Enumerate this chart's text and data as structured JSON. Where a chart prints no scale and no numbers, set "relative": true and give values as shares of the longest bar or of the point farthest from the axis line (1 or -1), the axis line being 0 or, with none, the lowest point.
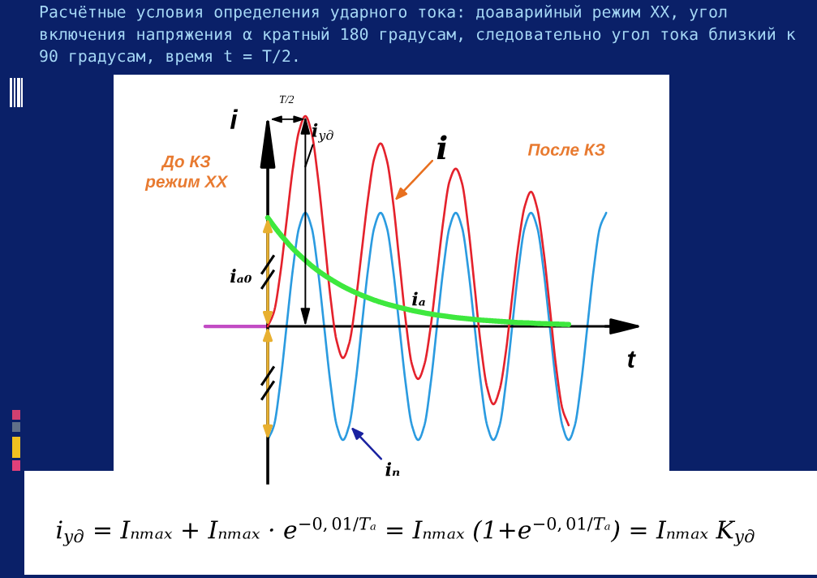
{
  "chart_data": {
    "type": "line",
    "title": "Расчётные условия определения ударного тока: доаварийный режим ХХ, угол включения напряжения α кратный 180 градусам, следовательно угол тока близкий к 90 градусам, время t = T/2.",
    "xlabel": "t",
    "ylabel": "i",
    "relative": true,
    "categories": [
      null,
      null,
      null,
      null,
      null,
      null,
      null,
      null,
      null,
      null,
      null,
      null,
      null,
      null,
      null,
      null,
      null,
      null,
      null,
      null,
      null,
      null,
      null,
      null,
      null,
      null,
      null,
      null,
      null,
      null,
      null,
      null,
      null,
      null,
      null,
      null,
      null,
      null,
      null,
      null,
      null,
      null,
      null,
      null,
      null,
      null,
      null,
      null,
      null,
      null,
      null,
      null,
      null,
      null,
      null,
      null,
      null,
      null,
      null,
      null,
      null,
      null,
      null,
      null,
      null
    ],
    "series": [
      {
        "name": "i",
        "color": "#e4222c",
        "values": [
          null,
          null,
          null,
          null,
          null,
          null,
          null,
          null,
          null,
          null,
          0,
          0.07,
          0.25,
          0.5,
          0.75,
          0.93,
          1.0,
          0.92,
          0.71,
          0.43,
          0.14,
          -0.07,
          -0.15,
          -0.08,
          0.11,
          0.36,
          0.61,
          0.8,
          0.87,
          0.79,
          0.59,
          0.31,
          0.03,
          -0.18,
          -0.25,
          -0.18,
          0.0,
          0.25,
          0.5,
          0.69,
          0.75,
          0.68,
          0.47,
          0.19,
          -0.09,
          -0.29,
          -0.37,
          -0.3,
          -0.12,
          0.14,
          0.39,
          0.57,
          0.64,
          0.56,
          0.36,
          0.09,
          -0.19,
          -0.39,
          -0.47,
          null,
          null,
          null,
          null,
          null,
          null
        ]
      },
      {
        "name": "iₙ",
        "color": "#2b9be0",
        "values": [
          null,
          null,
          null,
          null,
          null,
          null,
          null,
          null,
          null,
          null,
          -0.54,
          -0.47,
          -0.27,
          0,
          0.27,
          0.47,
          0.54,
          0.47,
          0.27,
          0,
          -0.27,
          -0.47,
          -0.54,
          -0.47,
          -0.27,
          0,
          0.27,
          0.47,
          0.54,
          0.47,
          0.27,
          0,
          -0.27,
          -0.47,
          -0.54,
          -0.47,
          -0.27,
          0,
          0.27,
          0.47,
          0.54,
          0.47,
          0.27,
          0,
          -0.27,
          -0.47,
          -0.54,
          -0.47,
          -0.27,
          0,
          0.27,
          0.47,
          0.54,
          0.47,
          0.27,
          0,
          -0.27,
          -0.47,
          -0.54,
          -0.47,
          -0.27,
          0,
          0.27,
          0.47,
          0.54
        ]
      },
      {
        "name": "iₐ",
        "color": "#3ee83e",
        "values": [
          null,
          null,
          null,
          null,
          null,
          null,
          null,
          null,
          null,
          null,
          0.517,
          0.476,
          0.438,
          0.403,
          0.37,
          0.341,
          0.314,
          0.288,
          0.265,
          0.244,
          0.225,
          0.207,
          0.19,
          0.175,
          0.161,
          0.148,
          0.136,
          0.125,
          0.115,
          0.106,
          0.098,
          0.09,
          0.083,
          0.076,
          0.07,
          0.064,
          0.059,
          0.054,
          0.05,
          0.046,
          0.042,
          0.039,
          0.036,
          0.033,
          0.03,
          0.028,
          0.026,
          0.024,
          0.022,
          0.02,
          0.018,
          0.017,
          0.016,
          0.014,
          0.013,
          0.012,
          0.011,
          0.01,
          0.009,
          null,
          null,
          null,
          null,
          null,
          null
        ]
      },
      {
        "color": "#c24cc4",
        "values": [
          0,
          0,
          0,
          0,
          0,
          0,
          0,
          0,
          0,
          0,
          0,
          null,
          null,
          null,
          null,
          null,
          null,
          null,
          null,
          null,
          null,
          null,
          null,
          null,
          null,
          null,
          null,
          null,
          null,
          null,
          null,
          null,
          null,
          null,
          null,
          null,
          null,
          null,
          null,
          null,
          null,
          null,
          null,
          null,
          null,
          null,
          null,
          null,
          null,
          null,
          null,
          null,
          null,
          null,
          null,
          null,
          null,
          null,
          null,
          null,
          null,
          null,
          null,
          null,
          null
        ]
      }
    ],
    "annotations": [
      "T/2",
      "i$_{уд}$",
      "iₐ₀",
      "До КЗ\nрежим ХХ",
      "После КЗ",
      "i$_{уд}$ = Iₙₘₐₓ + Iₙₘₐₓ · e$^{−0,01/Tₐ}$ = Iₙₘₐₓ (1+e$^{−0,01/Tₐ}$) = Iₙₘₐₓ K$_{уд}$"
    ]
  }
}
